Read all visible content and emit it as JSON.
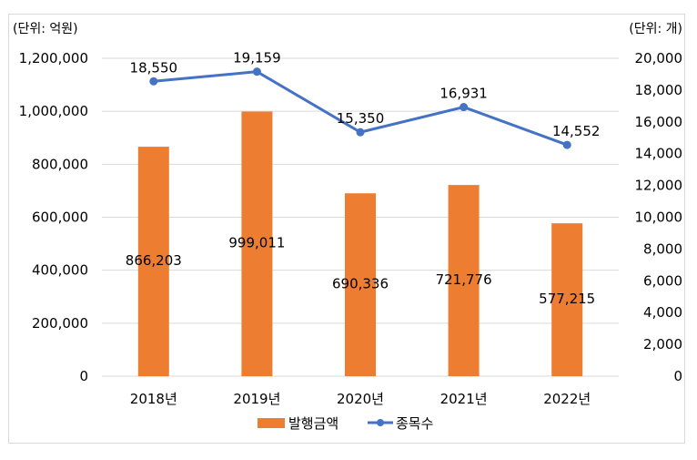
{
  "chart_data": {
    "type": "bar+line",
    "categories": [
      "2018년",
      "2019년",
      "2020년",
      "2021년",
      "2022년"
    ],
    "series": [
      {
        "name": "발행금액",
        "type": "bar",
        "axis": "left",
        "color": "#ED7D31",
        "values": [
          866203,
          999011,
          690336,
          721776,
          577215
        ]
      },
      {
        "name": "종목수",
        "type": "line",
        "axis": "right",
        "color": "#4472C4",
        "values": [
          18550,
          19159,
          15350,
          16931,
          14552
        ]
      }
    ],
    "left_axis": {
      "unit_label": "(단위: 억원)",
      "ylim": [
        0,
        1200000
      ],
      "ticks": [
        0,
        200000,
        400000,
        600000,
        800000,
        1000000,
        1200000
      ]
    },
    "right_axis": {
      "unit_label": "(단위: 개)",
      "ylim": [
        0,
        20000
      ],
      "ticks": [
        0,
        2000,
        4000,
        6000,
        8000,
        10000,
        12000,
        14000,
        16000,
        18000,
        20000
      ]
    },
    "grid": true,
    "legend": "bottom"
  }
}
